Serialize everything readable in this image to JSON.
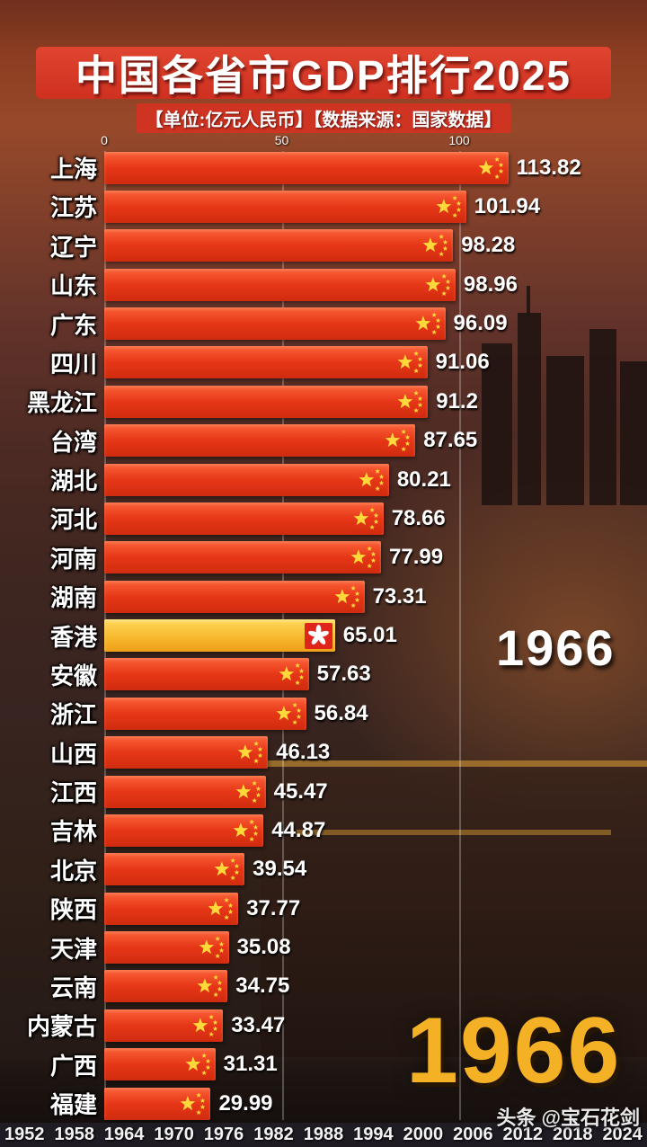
{
  "header": {
    "title": "中国各省市GDP排行2025",
    "subtitle": "【单位:亿元人民币】【数据来源：国家数据】"
  },
  "chart_data": {
    "type": "bar",
    "orientation": "horizontal",
    "title": "中国各省市GDP排行2025",
    "unit": "亿元人民币",
    "source": "国家数据",
    "year": "1966",
    "xlim": [
      0,
      115
    ],
    "x_ticks": [
      0,
      50,
      100
    ],
    "grid": true,
    "categories": [
      "上海",
      "江苏",
      "辽宁",
      "山东",
      "广东",
      "四川",
      "黑龙江",
      "台湾",
      "湖北",
      "河北",
      "河南",
      "湖南",
      "香港",
      "安徽",
      "浙江",
      "山西",
      "江西",
      "吉林",
      "北京",
      "陕西",
      "天津",
      "云南",
      "内蒙古",
      "广西",
      "福建"
    ],
    "values": [
      113.82,
      101.94,
      98.28,
      98.96,
      96.09,
      91.06,
      91.2,
      87.65,
      80.21,
      78.66,
      77.99,
      73.31,
      65.01,
      57.63,
      56.84,
      46.13,
      45.47,
      44.87,
      39.54,
      37.77,
      35.08,
      34.75,
      33.47,
      31.31,
      29.99
    ],
    "special": {
      "category": "香港",
      "bar_color": "#f5b731",
      "flag": "hk-bauhinia-icon"
    },
    "default_flag": "china-stars-icon"
  },
  "overlays": {
    "year_mid": "1966",
    "year_big": "1966"
  },
  "timeline_years": [
    "1952",
    "1958",
    "1964",
    "1970",
    "1976",
    "1982",
    "1988",
    "1994",
    "2000",
    "2006",
    "2012",
    "2018",
    "2024"
  ],
  "watermark": "头条 @宝石花剑",
  "colors": {
    "bar_red": "#e63717",
    "bar_gold": "#f5b731",
    "flag_star_yellow": "#ffd93a",
    "hk_flag_red": "#df241b",
    "title_bg": "#cf3020",
    "year_big_color": "#f4b126",
    "text_white": "#ffffff"
  }
}
